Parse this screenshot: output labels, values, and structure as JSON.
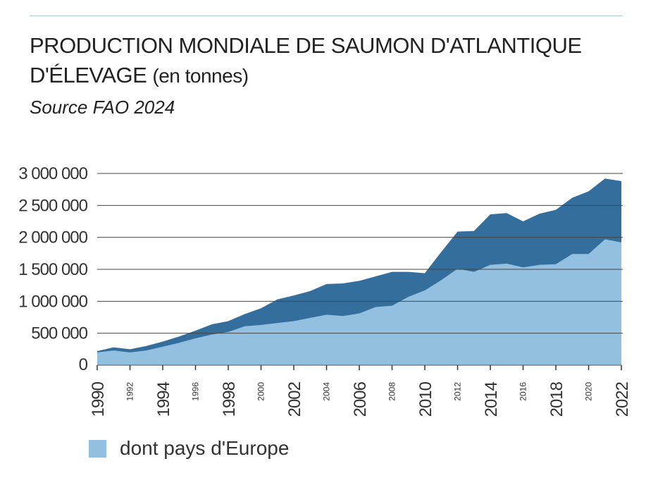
{
  "title": {
    "line1": "PRODUCTION MONDIALE DE SAUMON D'ATLANTIQUE",
    "line2": "D'ÉLEVAGE",
    "unit": "(en tonnes)"
  },
  "subtitle": "Source FAO 2024",
  "legend": {
    "europe_label": "dont pays d'Europe"
  },
  "colors": {
    "world": "#336e9c",
    "europe": "#93c0e0",
    "gridline": "#444444",
    "top_rule": "#a9cfd2"
  },
  "chart_data": {
    "type": "area",
    "x": [
      1990,
      1991,
      1992,
      1993,
      1994,
      1995,
      1996,
      1997,
      1998,
      1999,
      2000,
      2001,
      2002,
      2003,
      2004,
      2005,
      2006,
      2007,
      2008,
      2009,
      2010,
      2011,
      2012,
      2013,
      2014,
      2015,
      2016,
      2017,
      2018,
      2019,
      2020,
      2021,
      2022
    ],
    "series": [
      {
        "key": "world",
        "values": [
          220000,
          280000,
          250000,
          300000,
          370000,
          450000,
          540000,
          640000,
          690000,
          800000,
          890000,
          1030000,
          1090000,
          1160000,
          1270000,
          1280000,
          1320000,
          1390000,
          1460000,
          1460000,
          1440000,
          1770000,
          2090000,
          2100000,
          2360000,
          2380000,
          2250000,
          2370000,
          2430000,
          2620000,
          2720000,
          2920000,
          2880000
        ]
      },
      {
        "name": "dont pays d'Europe",
        "key": "europe",
        "values": [
          200000,
          230000,
          200000,
          230000,
          290000,
          350000,
          420000,
          480000,
          520000,
          610000,
          630000,
          660000,
          690000,
          740000,
          790000,
          770000,
          810000,
          910000,
          930000,
          1070000,
          1170000,
          1330000,
          1510000,
          1460000,
          1570000,
          1590000,
          1530000,
          1570000,
          1580000,
          1740000,
          1740000,
          1970000,
          1920000
        ]
      }
    ],
    "ylim": [
      0,
      3000000
    ],
    "yticks": [
      0,
      500000,
      1000000,
      1500000,
      2000000,
      2500000,
      3000000
    ],
    "ytick_labels": [
      "0",
      "500 000",
      "1 000 000",
      "1 500 000",
      "2 000 000",
      "2 500 000",
      "3 000 000"
    ],
    "xtick_labels": [
      "1990",
      "1992",
      "1994",
      "1996",
      "1998",
      "2000",
      "2002",
      "2004",
      "2006",
      "2008",
      "2010",
      "2012",
      "2014",
      "2016",
      "2018",
      "2020",
      "2022"
    ],
    "xtick_major": [
      "1990",
      "1994",
      "1998",
      "2002",
      "2006",
      "2010",
      "2014",
      "2018",
      "2022"
    ],
    "grid": true,
    "legend_position": "bottom-left"
  }
}
